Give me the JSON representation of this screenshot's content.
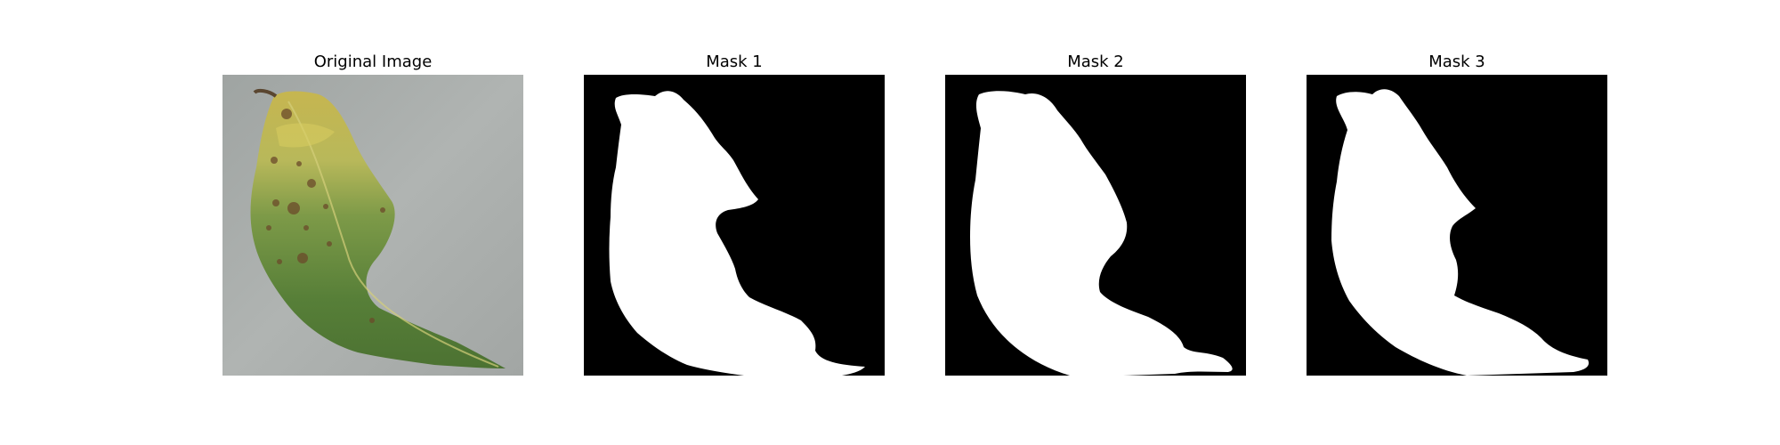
{
  "figure": {
    "panels": [
      {
        "title": "Original Image",
        "kind": "photo"
      },
      {
        "title": "Mask 1",
        "kind": "mask"
      },
      {
        "title": "Mask 2",
        "kind": "mask"
      },
      {
        "title": "Mask 3",
        "kind": "mask"
      }
    ],
    "colors": {
      "background": "#ffffff",
      "mask_foreground": "#ffffff",
      "mask_background": "#000000",
      "table_surface": "#a9adab",
      "leaf_green": "#5f8a3e",
      "leaf_yellow": "#c9c25a",
      "leaf_spot": "#6b4a2a"
    }
  }
}
